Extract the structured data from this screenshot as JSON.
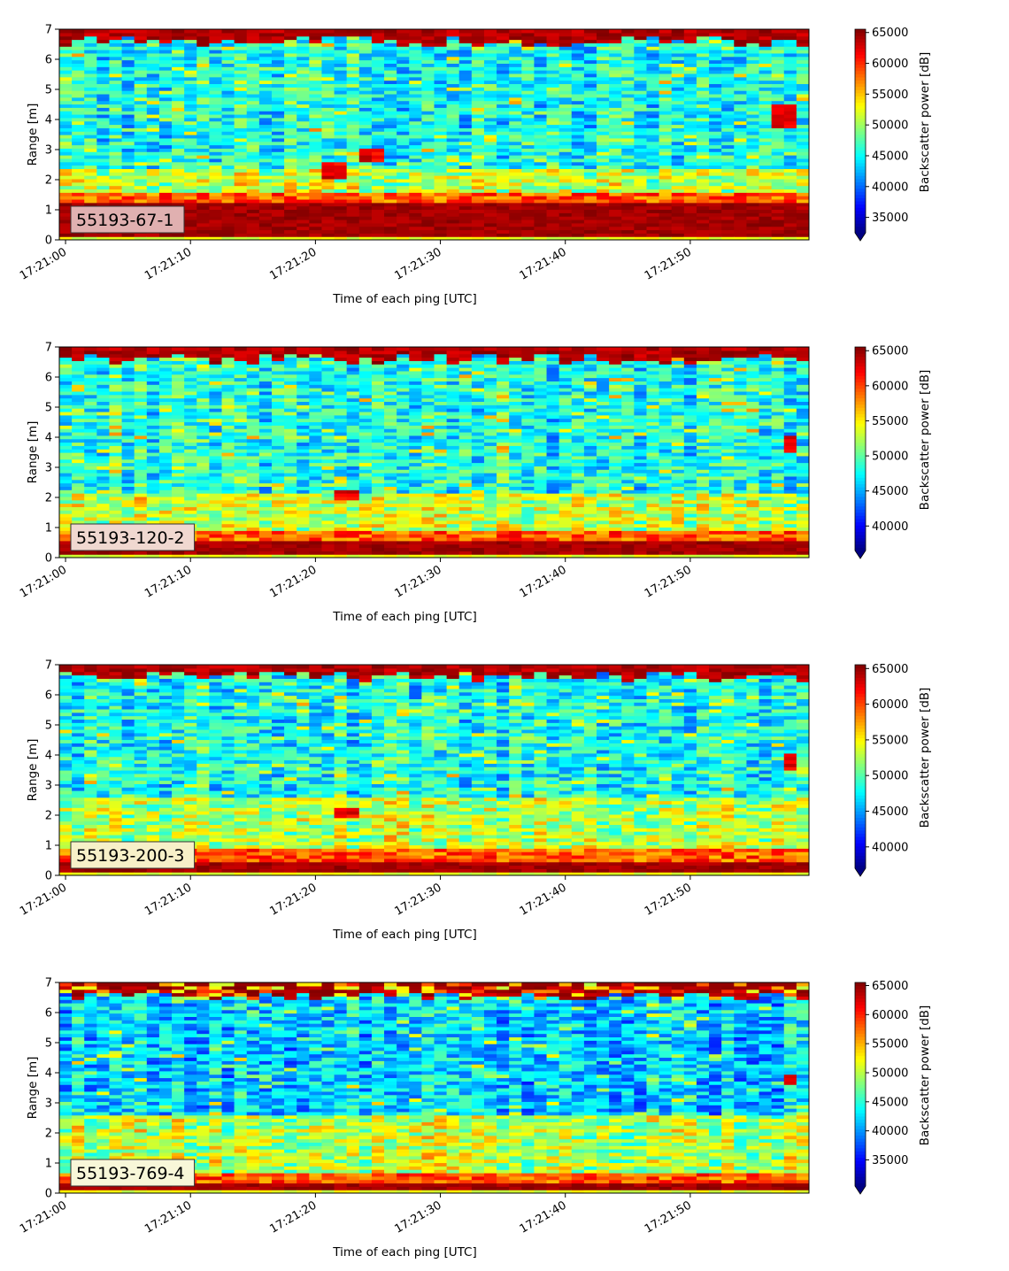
{
  "chart_data": [
    {
      "type": "heatmap",
      "label_box": "55193-67-1",
      "xlabel": "Time of each ping [UTC]",
      "ylabel": "Range [m]",
      "x_ticks": [
        "17:21:00",
        "17:21:10",
        "17:21:20",
        "17:21:30",
        "17:21:40",
        "17:21:50"
      ],
      "x_range": [
        "17:20:59.5",
        "17:21:59.5"
      ],
      "y_ticks": [
        0,
        1,
        2,
        3,
        4,
        5,
        6,
        7
      ],
      "ylim": [
        0,
        7
      ],
      "colorbar": {
        "label": "Backscatter power [dB]",
        "ticks": [
          35000,
          40000,
          45000,
          50000,
          55000,
          60000,
          65000
        ],
        "range": [
          32500,
          65535
        ],
        "extend": "min"
      },
      "colormap": "jet",
      "label_box_color": "#e0b0b0",
      "features": {
        "bottom_strong_band": [
          0.15,
          1.2
        ],
        "top_strong_band": [
          6.6,
          7.0
        ],
        "mid_green_band": [
          1.3,
          2.4
        ],
        "blobs": [
          {
            "t": 21.5,
            "r": 2.3,
            "w": 3,
            "h": 0.5
          },
          {
            "t": 24.5,
            "r": 2.8,
            "w": 3,
            "h": 0.5
          },
          {
            "t": 57.5,
            "r": 4.1,
            "w": 2.5,
            "h": 0.8
          }
        ]
      }
    },
    {
      "type": "heatmap",
      "label_box": "55193-120-2",
      "xlabel": "Time of each ping [UTC]",
      "ylabel": "Range [m]",
      "x_ticks": [
        "17:21:00",
        "17:21:10",
        "17:21:20",
        "17:21:30",
        "17:21:40",
        "17:21:50"
      ],
      "x_range": [
        "17:20:59.5",
        "17:21:59.5"
      ],
      "y_ticks": [
        0,
        1,
        2,
        3,
        4,
        5,
        6,
        7
      ],
      "ylim": [
        0,
        7
      ],
      "colorbar": {
        "label": "Backscatter power [dB]",
        "ticks": [
          40000,
          45000,
          50000,
          55000,
          60000,
          65000
        ],
        "range": [
          36500,
          65535
        ],
        "extend": "min"
      },
      "colormap": "jet",
      "label_box_color": "#f0d8d0",
      "features": {
        "bottom_strong_band": [
          0.15,
          0.6
        ],
        "top_strong_band": [
          6.6,
          7.0
        ],
        "mid_green_band": [
          0.7,
          2.2
        ],
        "blobs": [
          {
            "t": 22.5,
            "r": 2.1,
            "w": 1.5,
            "h": 0.3
          },
          {
            "t": 58,
            "r": 3.8,
            "w": 2,
            "h": 0.6
          }
        ]
      }
    },
    {
      "type": "heatmap",
      "label_box": "55193-200-3",
      "xlabel": "Time of each ping [UTC]",
      "ylabel": "Range [m]",
      "x_ticks": [
        "17:21:00",
        "17:21:10",
        "17:21:20",
        "17:21:30",
        "17:21:40",
        "17:21:50"
      ],
      "x_range": [
        "17:20:59.5",
        "17:21:59.5"
      ],
      "y_ticks": [
        0,
        1,
        2,
        3,
        4,
        5,
        6,
        7
      ],
      "ylim": [
        0,
        7
      ],
      "colorbar": {
        "label": "Backscatter power [dB]",
        "ticks": [
          40000,
          45000,
          50000,
          55000,
          60000,
          65000
        ],
        "range": [
          37000,
          65535
        ],
        "extend": "min"
      },
      "colormap": "jet",
      "label_box_color": "#f7f0c8",
      "features": {
        "bottom_strong_band": [
          0.15,
          0.5
        ],
        "top_strong_band": [
          6.65,
          7.0
        ],
        "mid_green_band": [
          0.6,
          2.6
        ],
        "blobs": [
          {
            "t": 22.5,
            "r": 2.1,
            "w": 1.5,
            "h": 0.25
          },
          {
            "t": 58,
            "r": 3.8,
            "w": 2,
            "h": 0.5
          }
        ]
      }
    },
    {
      "type": "heatmap",
      "label_box": "55193-769-4",
      "xlabel": "Time of each ping [UTC]",
      "ylabel": "Range [m]",
      "x_ticks": [
        "17:21:00",
        "17:21:10",
        "17:21:20",
        "17:21:30",
        "17:21:40",
        "17:21:50"
      ],
      "x_range": [
        "17:20:59.5",
        "17:21:59.5"
      ],
      "y_ticks": [
        0,
        1,
        2,
        3,
        4,
        5,
        6,
        7
      ],
      "ylim": [
        0,
        7
      ],
      "colorbar": {
        "label": "Backscatter power [dB]",
        "ticks": [
          35000,
          40000,
          45000,
          50000,
          55000,
          60000,
          65000
        ],
        "range": [
          30500,
          65535
        ],
        "extend": "min"
      },
      "colormap": "jet",
      "label_box_color": "#f8f7d8",
      "features": {
        "bottom_strong_band": [
          0.15,
          0.35
        ],
        "top_strong_band": [
          6.55,
          6.95
        ],
        "mid_green_band": [
          0.4,
          2.6
        ],
        "blobs": [
          {
            "t": 58,
            "r": 3.8,
            "w": 1.5,
            "h": 0.4
          }
        ]
      }
    }
  ]
}
